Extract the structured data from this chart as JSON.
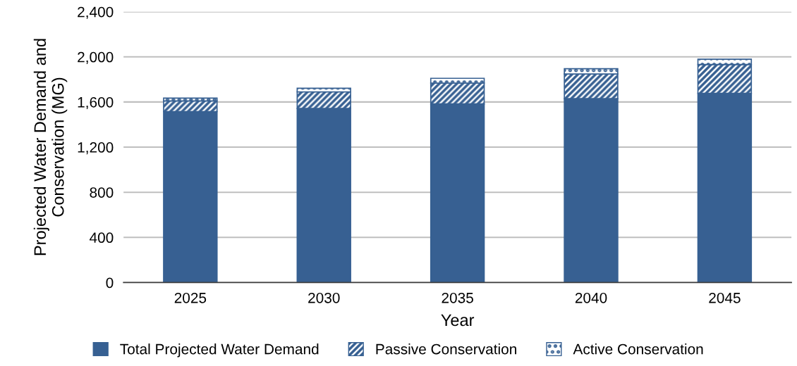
{
  "chart_data": {
    "type": "bar",
    "stacked": true,
    "xlabel": "Year",
    "ylabel": "Projected Water Demand and Conservation (MG)",
    "categories": [
      "2025",
      "2030",
      "2035",
      "2040",
      "2045"
    ],
    "series": [
      {
        "name": "Total Projected Water Demand",
        "color": "#376092",
        "values": [
          1515,
          1543,
          1583,
          1630,
          1677
        ]
      },
      {
        "name": "Passive Conservation",
        "color": "#376092",
        "values": [
          95,
          147,
          185,
          218,
          255
        ]
      },
      {
        "name": "Active Conservation",
        "color": "#376092",
        "values": [
          25,
          32,
          42,
          47,
          47
        ]
      }
    ],
    "ylim": [
      0,
      2400
    ],
    "yticks": [
      {
        "value": 0,
        "label": "0"
      },
      {
        "value": 400,
        "label": "400"
      },
      {
        "value": 800,
        "label": "800"
      },
      {
        "value": 1200,
        "label": "1,200"
      },
      {
        "value": 1600,
        "label": "1,600"
      },
      {
        "value": 2000,
        "label": "2,000"
      },
      {
        "value": 2400,
        "label": "2,400"
      }
    ],
    "grid": "y",
    "legend": "bottom"
  }
}
